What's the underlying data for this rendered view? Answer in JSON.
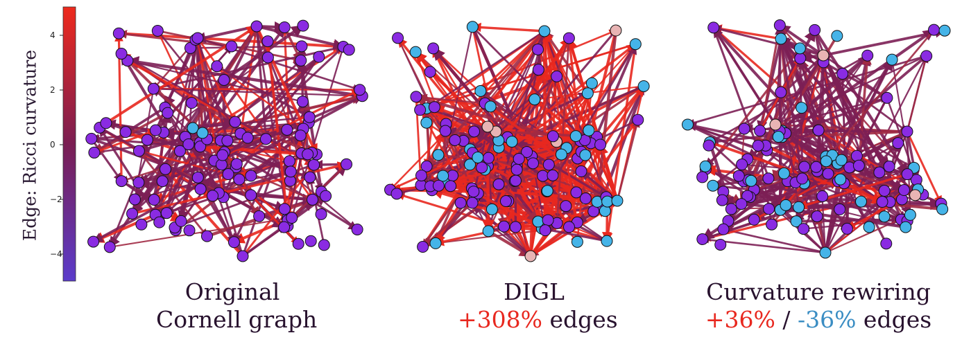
{
  "colorbar": {
    "label": "Edge: Ricci curvature",
    "ticks": [
      "4",
      "2",
      "0",
      "−2",
      "−4"
    ],
    "range": [
      -5,
      5
    ],
    "colors": {
      "low": "#5b3ccb",
      "mid": "#7a1e52",
      "high": "#ee2a1d"
    }
  },
  "panels": [
    {
      "id": "original",
      "title_line1": "Original",
      "title_line2": "Cornell graph"
    },
    {
      "id": "digl",
      "title_line1": "DIGL",
      "title_line2_num": "+308%",
      "title_line2_rest": " edges"
    },
    {
      "id": "rewiring",
      "title_line1": "Curvature rewiring",
      "plus": "+36%",
      "sep": " / ",
      "minus": "-36%",
      "rest": " edges"
    }
  ],
  "node_colors": {
    "original": "#8a2be2",
    "added": "#45b4e8",
    "removed": "#e8b4b4",
    "outline": "#111111"
  }
}
